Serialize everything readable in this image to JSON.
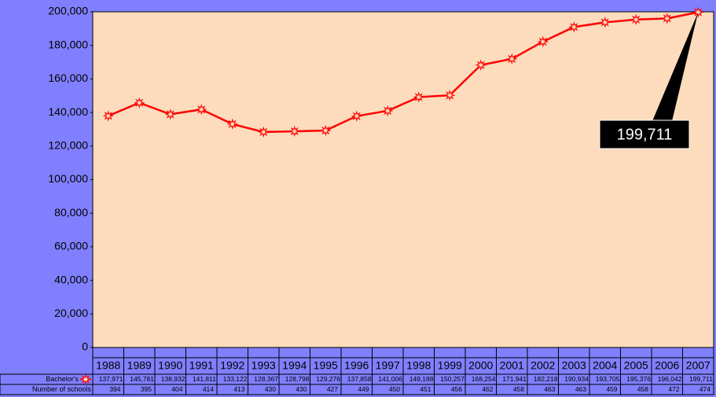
{
  "chart_data": {
    "type": "line",
    "categories": [
      "1988",
      "1989",
      "1990",
      "1991",
      "1992",
      "1993",
      "1994",
      "1995",
      "1996",
      "1997",
      "1998",
      "1999",
      "2000",
      "2001",
      "2002",
      "2003",
      "2004",
      "2005",
      "2006",
      "2007"
    ],
    "series": [
      {
        "name": "Bachelor's",
        "color": "#ff0000",
        "values": [
          137971,
          145781,
          138932,
          141811,
          133122,
          128367,
          128798,
          129276,
          137858,
          141006,
          149188,
          150257,
          168254,
          171941,
          182218,
          190934,
          193705,
          195376,
          196042,
          199711
        ],
        "value_labels": [
          "137,971",
          "145,781",
          "138,932",
          "141,811",
          "133,122",
          "128,367",
          "128,798",
          "129,276",
          "137,858",
          "141,006",
          "149,188",
          "150,257",
          "168,254",
          "171,941",
          "182,218",
          "190,934",
          "193,705",
          "195,376",
          "196,042",
          "199,711"
        ]
      }
    ],
    "table_rows": [
      {
        "name": "Number of schools",
        "values": [
          394,
          395,
          404,
          414,
          413,
          430,
          430,
          427,
          449,
          450,
          451,
          456,
          462,
          458,
          463,
          463,
          459,
          458,
          472,
          474
        ]
      }
    ],
    "ylim": [
      0,
      200000
    ],
    "yticks": [
      0,
      {
        "value": 20000,
        "label": "20,000"
      },
      {
        "value": 40000,
        "label": "40,000"
      },
      {
        "value": 60000,
        "label": "60,000"
      },
      {
        "value": 80000,
        "label": "80,000"
      },
      {
        "value": 100000,
        "label": "100,000"
      },
      {
        "value": 120000,
        "label": "120,000"
      },
      {
        "value": 140000,
        "label": "140,000"
      },
      {
        "value": 160000,
        "label": "160,000"
      },
      {
        "value": 180000,
        "label": "180,000"
      },
      {
        "value": 200000,
        "label": "200,000"
      }
    ],
    "grid": false,
    "annotation": "199,711"
  }
}
